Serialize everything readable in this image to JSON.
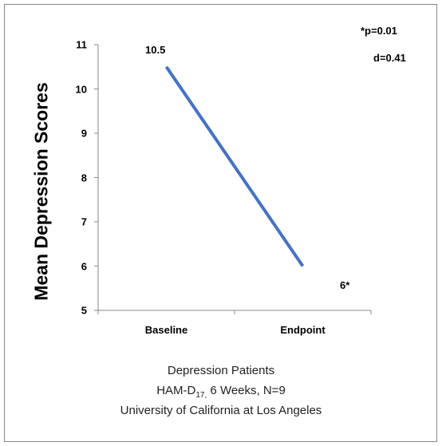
{
  "chart_data": {
    "type": "line",
    "categories": [
      "Baseline",
      "Endpoint"
    ],
    "series": [
      {
        "values": [
          10.5,
          6
        ]
      }
    ],
    "ylabel": "Mean Depression Scores",
    "ylim": [
      5,
      11
    ],
    "yticks": [
      "5",
      "6",
      "7",
      "8",
      "9",
      "10",
      "11"
    ],
    "data_labels": [
      "10.5",
      "6*"
    ],
    "annotations": [
      "*p=0.01",
      "d=0.41"
    ],
    "line_color": "#4472c4",
    "grid": false
  },
  "caption": {
    "line1": "Depression Patients",
    "line2_prefix": "HAM-D",
    "line2_sub": "17,",
    "line2_suffix": " 6 Weeks, N=9",
    "line3": "University of California at Los Angeles"
  }
}
